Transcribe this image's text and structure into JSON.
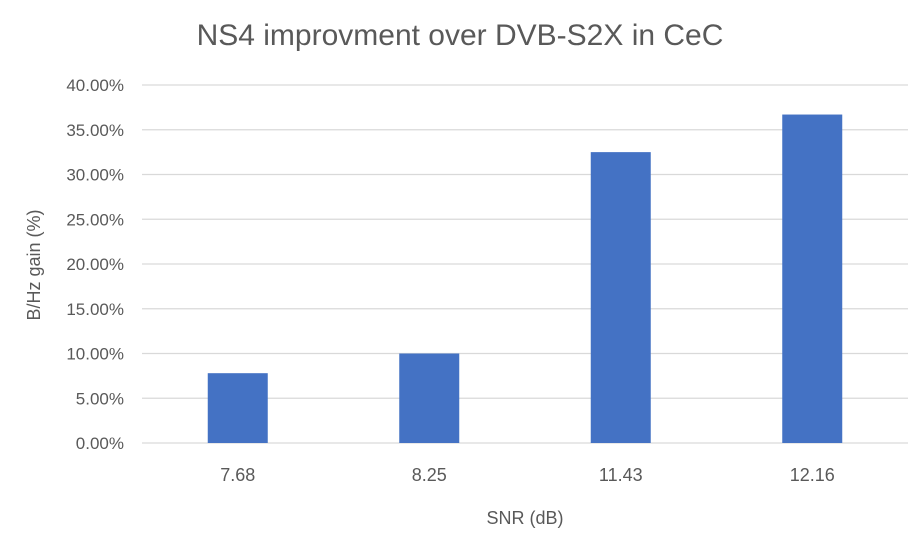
{
  "chart_data": {
    "type": "bar",
    "title": "NS4 improvment over DVB-S2X in CeC",
    "xlabel": "SNR (dB)",
    "ylabel": "B/Hz gain (%)",
    "categories": [
      "7.68",
      "8.25",
      "11.43",
      "12.16"
    ],
    "values": [
      7.8,
      10.0,
      32.5,
      36.7
    ],
    "ylim": [
      0,
      40
    ],
    "yticks": [
      0,
      5,
      10,
      15,
      20,
      25,
      30,
      35,
      40
    ],
    "ytick_labels": [
      "0.00%",
      "5.00%",
      "10.00%",
      "15.00%",
      "20.00%",
      "25.00%",
      "30.00%",
      "35.00%",
      "40.00%"
    ],
    "grid": true,
    "legend": "none",
    "bar_color": "#4472c4",
    "grid_color": "#d9d9d9",
    "text_color": "#595959"
  }
}
